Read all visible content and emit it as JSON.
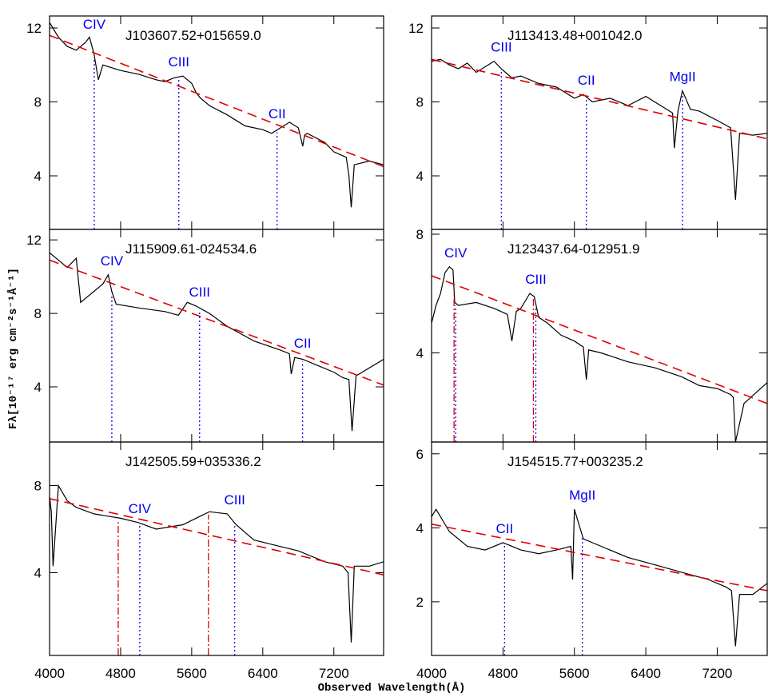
{
  "xlabel": "Observed Wavelength(Å)",
  "ylabel": "Fλ[10⁻¹⁷ erg cm⁻²s⁻¹Å⁻¹]",
  "chart_data": [
    {
      "type": "line",
      "title": "J103607.52+015659.0",
      "xlim": [
        4000,
        7760
      ],
      "ylim": [
        1.1,
        12.65
      ],
      "xticks": [
        4000,
        4800,
        5600,
        6400,
        7200
      ],
      "yticks": [
        4,
        8,
        12
      ],
      "series": [
        {
          "color": "#000000",
          "style": "solid",
          "x": [
            4000,
            4100,
            4200,
            4300,
            4400,
            4450,
            4500,
            4550,
            4600,
            4800,
            5000,
            5200,
            5300,
            5400,
            5500,
            5600,
            5650,
            5700,
            5800,
            6000,
            6200,
            6400,
            6500,
            6600,
            6700,
            6800,
            6850,
            6870,
            6900,
            7100,
            7200,
            7340,
            7370,
            7396,
            7430,
            7600,
            7760
          ],
          "values": [
            12.3,
            11.5,
            11.0,
            10.8,
            11.2,
            11.5,
            10.6,
            9.2,
            10.0,
            9.7,
            9.5,
            9.2,
            9.1,
            9.3,
            9.4,
            9.0,
            8.5,
            8.2,
            7.8,
            7.3,
            6.7,
            6.5,
            6.3,
            6.6,
            6.9,
            6.6,
            5.6,
            6.2,
            6.3,
            5.8,
            5.3,
            5.0,
            4.0,
            2.3,
            4.6,
            4.8,
            4.6
          ]
        },
        {
          "color": "#e00000",
          "style": "dashed",
          "x": [
            4000,
            7760
          ],
          "values": [
            11.6,
            4.5
          ]
        }
      ],
      "markers": [
        {
          "label": "CIV",
          "x": 4503,
          "color": "#0000ee",
          "style": "dotted"
        },
        {
          "label": "CIII",
          "x": 5455,
          "color": "#0000ee",
          "style": "dotted"
        },
        {
          "label": "CII",
          "x": 6561,
          "color": "#0000ee",
          "style": "dotted"
        }
      ]
    },
    {
      "type": "line",
      "title": "J113413.48+001042.0",
      "xlim": [
        4000,
        7760
      ],
      "ylim": [
        1.1,
        12.65
      ],
      "xticks": [
        4000,
        4800,
        5600,
        6400,
        7200
      ],
      "yticks": [
        4,
        8,
        12
      ],
      "series": [
        {
          "color": "#000000",
          "style": "solid",
          "x": [
            4000,
            4100,
            4200,
            4300,
            4400,
            4500,
            4600,
            4700,
            4780,
            4900,
            5000,
            5200,
            5400,
            5600,
            5700,
            5800,
            6000,
            6200,
            6400,
            6600,
            6700,
            6720,
            6760,
            6810,
            6900,
            7000,
            7200,
            7350,
            7405,
            7450,
            7600,
            7760
          ],
          "values": [
            10.2,
            10.3,
            10.0,
            9.8,
            10.1,
            9.6,
            9.9,
            10.2,
            9.8,
            9.3,
            9.4,
            9.0,
            8.8,
            8.2,
            8.4,
            8.0,
            8.2,
            7.8,
            8.3,
            7.7,
            7.4,
            5.5,
            7.5,
            8.6,
            7.6,
            7.5,
            7.0,
            6.6,
            2.7,
            6.3,
            6.2,
            6.3
          ]
        },
        {
          "color": "#e00000",
          "style": "dashed",
          "x": [
            4000,
            7760
          ],
          "values": [
            10.3,
            6.0
          ]
        }
      ],
      "markers": [
        {
          "label": "CIII",
          "x": 4782,
          "color": "#0000ee",
          "style": "dotted"
        },
        {
          "label": "CII",
          "x": 5734,
          "color": "#0000ee",
          "style": "dotted"
        },
        {
          "label": "MgII",
          "x": 6812,
          "color": "#0000ee",
          "style": "dotted"
        }
      ]
    },
    {
      "type": "line",
      "title": "J115909.61-024534.6",
      "xlim": [
        4000,
        7760
      ],
      "ylim": [
        1.0,
        12.57
      ],
      "xticks": [
        4000,
        4800,
        5600,
        6400,
        7200
      ],
      "yticks": [
        4,
        8,
        12
      ],
      "series": [
        {
          "color": "#000000",
          "style": "solid",
          "x": [
            4000,
            4100,
            4200,
            4300,
            4350,
            4400,
            4500,
            4600,
            4660,
            4700,
            4750,
            5000,
            5300,
            5450,
            5550,
            5650,
            5800,
            6000,
            6300,
            6600,
            6700,
            6720,
            6760,
            6850,
            7000,
            7200,
            7300,
            7370,
            7405,
            7450,
            7760
          ],
          "values": [
            11.3,
            10.9,
            10.5,
            11.0,
            8.6,
            8.8,
            9.2,
            9.6,
            10.1,
            9.2,
            8.5,
            8.3,
            8.1,
            7.9,
            8.6,
            8.4,
            8.0,
            7.3,
            6.5,
            6.0,
            5.8,
            4.7,
            5.6,
            5.5,
            5.2,
            4.8,
            4.5,
            4.4,
            1.6,
            4.6,
            5.5
          ]
        },
        {
          "color": "#e00000",
          "style": "dashed",
          "x": [
            4000,
            7760
          ],
          "values": [
            10.9,
            4.1
          ]
        }
      ],
      "markers": [
        {
          "label": "CIV",
          "x": 4701,
          "color": "#0000ee",
          "style": "dotted"
        },
        {
          "label": "CIII",
          "x": 5689,
          "color": "#0000ee",
          "style": "dotted"
        },
        {
          "label": "CII",
          "x": 6848,
          "color": "#0000ee",
          "style": "dotted"
        }
      ]
    },
    {
      "type": "line",
      "title": "J123437.64-012951.9",
      "xlim": [
        4000,
        7760
      ],
      "ylim": [
        1.0,
        8.16
      ],
      "xticks": [
        4000,
        4800,
        5600,
        6400,
        7200
      ],
      "yticks": [
        4,
        8
      ],
      "series": [
        {
          "color": "#000000",
          "style": "solid",
          "x": [
            4000,
            4050,
            4100,
            4150,
            4200,
            4240,
            4260,
            4300,
            4500,
            4700,
            4850,
            4900,
            4950,
            5000,
            5080,
            5100,
            5150,
            5200,
            5300,
            5450,
            5600,
            5700,
            5734,
            5760,
            5900,
            6200,
            6500,
            6800,
            7000,
            7200,
            7350,
            7380,
            7405,
            7500,
            7760
          ],
          "values": [
            5.0,
            5.6,
            6.0,
            6.7,
            6.9,
            6.8,
            5.7,
            5.6,
            5.7,
            5.5,
            5.3,
            4.4,
            5.4,
            5.5,
            5.9,
            6.0,
            5.9,
            5.2,
            5.0,
            4.6,
            4.4,
            4.2,
            3.1,
            4.1,
            4.0,
            3.7,
            3.5,
            3.2,
            2.9,
            2.8,
            2.6,
            2.5,
            1.0,
            2.3,
            3.0
          ]
        },
        {
          "color": "#e00000",
          "style": "dashed",
          "x": [
            4000,
            7760
          ],
          "values": [
            6.6,
            2.3
          ]
        }
      ],
      "markers": [
        {
          "x": 4252,
          "color": "#e00000",
          "style": "dashdot"
        },
        {
          "label": "CIV",
          "x": 4270,
          "color": "#0000ee",
          "style": "dotted"
        },
        {
          "x": 5141,
          "color": "#e00000",
          "style": "dashdot"
        },
        {
          "label": "CIII",
          "x": 5168,
          "color": "#0000ee",
          "style": "dotted"
        }
      ]
    },
    {
      "type": "line",
      "title": "J142505.59+035336.2",
      "xlim": [
        4000,
        7760
      ],
      "ylim": [
        0.2,
        10.0
      ],
      "xticks": [
        4000,
        4800,
        5600,
        6400,
        7200
      ],
      "yticks": [
        4,
        8
      ],
      "series": [
        {
          "color": "#000000",
          "style": "solid",
          "x": [
            4000,
            4020,
            4040,
            4100,
            4200,
            4300,
            4500,
            4800,
            5000,
            5200,
            5500,
            5700,
            5800,
            6000,
            6100,
            6300,
            6500,
            6800,
            7100,
            7300,
            7360,
            7396,
            7430,
            7600,
            7760
          ],
          "values": [
            7.5,
            6.8,
            4.3,
            8.0,
            7.3,
            7.0,
            6.7,
            6.5,
            6.3,
            6.0,
            6.2,
            6.6,
            6.8,
            6.7,
            6.2,
            5.5,
            5.3,
            5.0,
            4.5,
            4.3,
            4.0,
            0.8,
            4.3,
            4.3,
            4.5
          ]
        },
        {
          "color": "#e00000",
          "style": "dashed",
          "x": [
            4000,
            7760
          ],
          "values": [
            7.4,
            3.9
          ]
        }
      ],
      "markers": [
        {
          "x": 4773,
          "color": "#e00000",
          "style": "dashdot"
        },
        {
          "label": "CIV",
          "x": 5015,
          "color": "#0000ee",
          "style": "dotted"
        },
        {
          "x": 5788,
          "color": "#e00000",
          "style": "dashdot"
        },
        {
          "label": "CIII",
          "x": 6084,
          "color": "#0000ee",
          "style": "dotted"
        }
      ]
    },
    {
      "type": "line",
      "title": "J154515.77+003235.2",
      "xlim": [
        4000,
        7760
      ],
      "ylim": [
        0.55,
        6.32
      ],
      "xticks": [
        4000,
        4800,
        5600,
        6400,
        7200
      ],
      "yticks": [
        2,
        4,
        6
      ],
      "series": [
        {
          "color": "#000000",
          "style": "solid",
          "x": [
            4000,
            4050,
            4200,
            4400,
            4600,
            4800,
            5000,
            5200,
            5400,
            5560,
            5580,
            5600,
            5700,
            5900,
            6200,
            6500,
            6800,
            7100,
            7300,
            7360,
            7405,
            7450,
            7600,
            7760
          ],
          "values": [
            4.3,
            4.5,
            3.9,
            3.5,
            3.4,
            3.6,
            3.4,
            3.3,
            3.4,
            3.5,
            2.6,
            4.5,
            3.7,
            3.5,
            3.2,
            3.0,
            2.8,
            2.6,
            2.4,
            2.3,
            0.8,
            2.2,
            2.2,
            2.5
          ]
        },
        {
          "color": "#e00000",
          "style": "dashed",
          "x": [
            4000,
            7760
          ],
          "values": [
            4.1,
            2.3
          ]
        }
      ],
      "markers": [
        {
          "label": "CII",
          "x": 4818,
          "color": "#0000ee",
          "style": "dotted"
        },
        {
          "label": "MgII",
          "x": 5689,
          "color": "#0000ee",
          "style": "dotted"
        }
      ]
    }
  ]
}
